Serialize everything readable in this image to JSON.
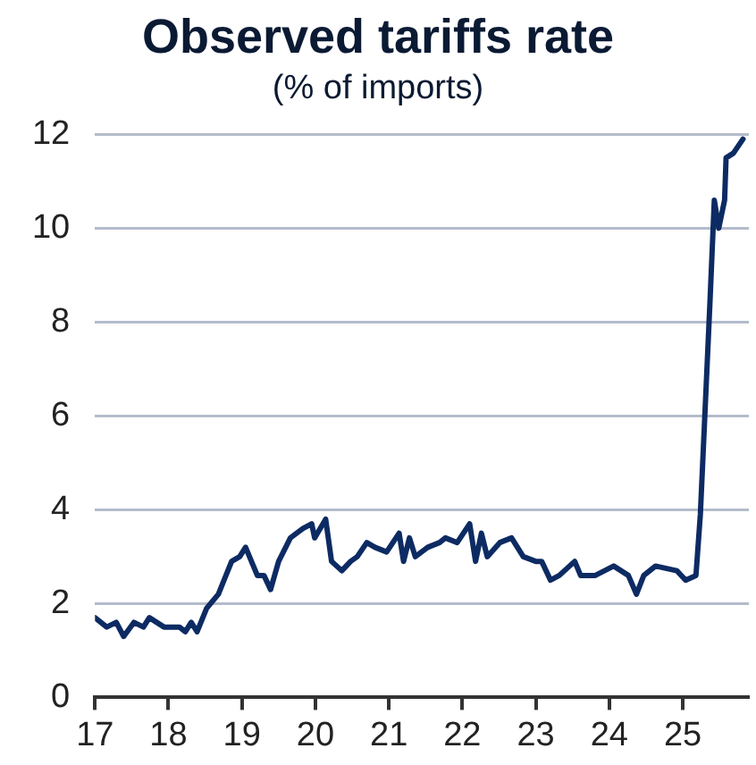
{
  "chart_data": {
    "type": "line",
    "title": "Observed tariffs rate",
    "subtitle": "(% of imports)",
    "series": [
      {
        "color": "#0d2b63",
        "x": [
          17.0,
          17.16,
          17.29,
          17.39,
          17.53,
          17.66,
          17.74,
          17.94,
          18.15,
          18.23,
          18.31,
          18.39,
          18.52,
          18.68,
          18.86,
          18.97,
          19.05,
          19.21,
          19.3,
          19.39,
          19.5,
          19.66,
          19.83,
          19.95,
          19.99,
          20.14,
          20.22,
          20.36,
          20.48,
          20.57,
          20.7,
          20.81,
          20.97,
          21.14,
          21.2,
          21.28,
          21.36,
          21.53,
          21.69,
          21.77,
          21.93,
          22.1,
          22.18,
          22.26,
          22.34,
          22.51,
          22.67,
          22.83,
          23.0,
          23.08,
          23.2,
          23.32,
          23.53,
          23.61,
          23.81,
          24.06,
          24.26,
          24.37,
          24.47,
          24.63,
          24.92,
          25.04,
          25.18,
          25.24,
          25.37,
          25.43,
          25.49,
          25.57,
          25.59,
          25.69,
          25.82
        ],
        "values": [
          1.7,
          1.5,
          1.6,
          1.3,
          1.6,
          1.5,
          1.7,
          1.5,
          1.5,
          1.4,
          1.6,
          1.4,
          1.9,
          2.2,
          2.9,
          3.0,
          3.2,
          2.6,
          2.6,
          2.3,
          2.9,
          3.4,
          3.6,
          3.7,
          3.4,
          3.8,
          2.9,
          2.7,
          2.9,
          3.0,
          3.3,
          3.2,
          3.1,
          3.5,
          2.9,
          3.4,
          3.0,
          3.2,
          3.3,
          3.4,
          3.3,
          3.7,
          2.9,
          3.5,
          3.0,
          3.3,
          3.4,
          3.0,
          2.9,
          2.9,
          2.5,
          2.6,
          2.9,
          2.6,
          2.6,
          2.8,
          2.6,
          2.2,
          2.6,
          2.8,
          2.7,
          2.5,
          2.6,
          3.9,
          8.4,
          10.6,
          10.0,
          10.6,
          11.5,
          11.6,
          11.9
        ]
      }
    ],
    "xlim": [
      17,
      25.9
    ],
    "xticks": [
      17,
      18,
      19,
      20,
      21,
      22,
      23,
      24,
      25
    ],
    "ylim": [
      0,
      12
    ],
    "yticks": [
      0,
      2,
      4,
      6,
      8,
      10,
      12
    ],
    "grid": "y",
    "legend": false,
    "marker": "none",
    "line_style": "solid"
  }
}
